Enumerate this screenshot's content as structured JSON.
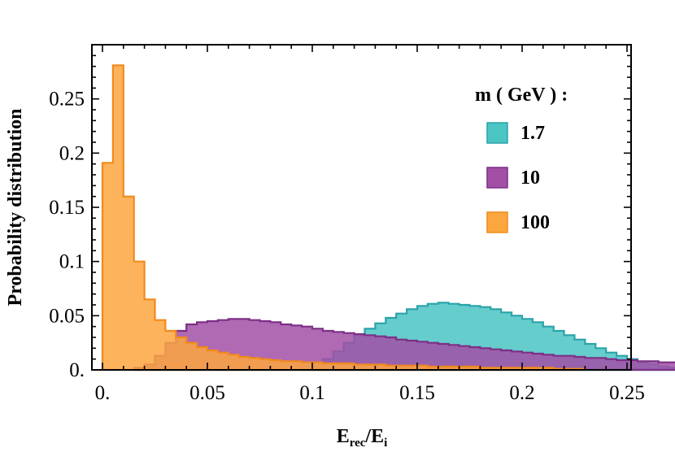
{
  "chart_data": {
    "type": "histogram",
    "xlabel": "E",
    "xlabel_sub1": "rec",
    "xlabel_sep": "/E",
    "xlabel_sub2": "i",
    "ylabel": "Probability distribution",
    "xlim": [
      0,
      0.25
    ],
    "ylim": [
      0,
      0.3
    ],
    "grid": false,
    "legend_title": "m ( GeV ) :",
    "legend_position": "top-right",
    "bin_width": 0.005,
    "x_ticks": [
      {
        "value": 0.0,
        "label": "0."
      },
      {
        "value": 0.05,
        "label": "0.05"
      },
      {
        "value": 0.1,
        "label": "0.1"
      },
      {
        "value": 0.15,
        "label": "0.15"
      },
      {
        "value": 0.2,
        "label": "0.2"
      },
      {
        "value": 0.25,
        "label": "0.25"
      }
    ],
    "y_ticks": [
      {
        "value": 0.0,
        "label": "0."
      },
      {
        "value": 0.05,
        "label": "0.05"
      },
      {
        "value": 0.1,
        "label": "0.1"
      },
      {
        "value": 0.15,
        "label": "0.15"
      },
      {
        "value": 0.2,
        "label": "0.2"
      },
      {
        "value": 0.25,
        "label": "0.25"
      }
    ],
    "series": [
      {
        "name": "1.7",
        "fill": "#4bc4c4",
        "stroke": "#2aa3a8",
        "x_start": 0.095,
        "values": [
          0.003,
          0.006,
          0.01,
          0.017,
          0.025,
          0.032,
          0.038,
          0.043,
          0.048,
          0.052,
          0.056,
          0.059,
          0.061,
          0.062,
          0.061,
          0.06,
          0.059,
          0.058,
          0.056,
          0.053,
          0.05,
          0.047,
          0.044,
          0.04,
          0.036,
          0.032,
          0.028,
          0.024,
          0.02,
          0.016,
          0.013,
          0.01,
          0.007,
          0.005,
          0.003,
          0.002
        ]
      },
      {
        "name": "10",
        "fill": "#a24fa6",
        "stroke": "#7c2f86",
        "x_start": 0.015,
        "values": [
          0.002,
          0.005,
          0.013,
          0.025,
          0.036,
          0.042,
          0.044,
          0.045,
          0.046,
          0.047,
          0.047,
          0.046,
          0.045,
          0.044,
          0.042,
          0.041,
          0.04,
          0.038,
          0.036,
          0.035,
          0.034,
          0.033,
          0.032,
          0.031,
          0.03,
          0.028,
          0.027,
          0.026,
          0.025,
          0.024,
          0.023,
          0.022,
          0.021,
          0.02,
          0.019,
          0.018,
          0.017,
          0.016,
          0.015,
          0.014,
          0.013,
          0.013,
          0.012,
          0.011,
          0.011,
          0.01,
          0.009,
          0.009,
          0.008,
          0.008,
          0.007,
          0.007,
          0.006,
          0.006,
          0.005,
          0.005
        ]
      },
      {
        "name": "100",
        "fill": "#fba63f",
        "stroke": "#f08a1c",
        "x_start": 0.0,
        "values": [
          0.191,
          0.281,
          0.16,
          0.1,
          0.065,
          0.046,
          0.036,
          0.03,
          0.025,
          0.021,
          0.018,
          0.016,
          0.014,
          0.012,
          0.011,
          0.01,
          0.009,
          0.008,
          0.008,
          0.007,
          0.007,
          0.006,
          0.006,
          0.006,
          0.005,
          0.005,
          0.005,
          0.004,
          0.004,
          0.004,
          0.004,
          0.003,
          0.003,
          0.003,
          0.003,
          0.003,
          0.002,
          0.002,
          0.002,
          0.002,
          0.002,
          0.002,
          0.002,
          0.001,
          0.001,
          0.001
        ]
      }
    ]
  }
}
